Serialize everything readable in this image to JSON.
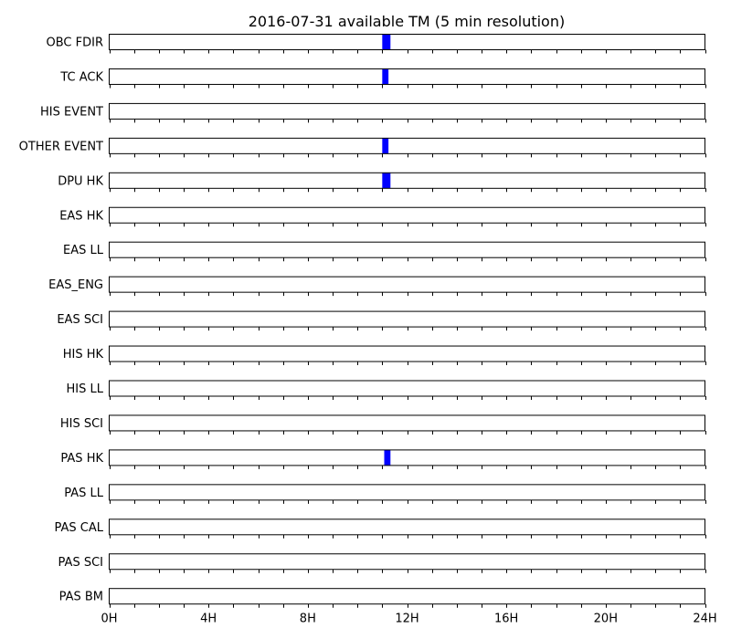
{
  "chart_data": {
    "type": "timeline",
    "title": "2016-07-31 available TM (5 min resolution)",
    "x_unit": "hours",
    "xlim": [
      0,
      24
    ],
    "x_tick_values": [
      0,
      4,
      8,
      12,
      16,
      20,
      24
    ],
    "x_tick_labels": [
      "0H",
      "4H",
      "8H",
      "12H",
      "16H",
      "20H",
      "24H"
    ],
    "minor_tick_step_hours": 1,
    "bar_color": "#0000ff",
    "rows": [
      {
        "label": "OBC FDIR",
        "intervals": [
          [
            11.0,
            11.33
          ]
        ]
      },
      {
        "label": "TC ACK",
        "intervals": [
          [
            11.0,
            11.25
          ]
        ]
      },
      {
        "label": "HIS EVENT",
        "intervals": []
      },
      {
        "label": "OTHER EVENT",
        "intervals": [
          [
            11.0,
            11.25
          ]
        ]
      },
      {
        "label": "DPU HK",
        "intervals": [
          [
            11.0,
            11.33
          ]
        ]
      },
      {
        "label": "EAS HK",
        "intervals": []
      },
      {
        "label": "EAS LL",
        "intervals": []
      },
      {
        "label": "EAS_ENG",
        "intervals": []
      },
      {
        "label": "EAS SCI",
        "intervals": []
      },
      {
        "label": "HIS HK",
        "intervals": []
      },
      {
        "label": "HIS LL",
        "intervals": []
      },
      {
        "label": "HIS SCI",
        "intervals": []
      },
      {
        "label": "PAS HK",
        "intervals": [
          [
            11.08,
            11.33
          ]
        ]
      },
      {
        "label": "PAS LL",
        "intervals": []
      },
      {
        "label": "PAS CAL",
        "intervals": []
      },
      {
        "label": "PAS SCI",
        "intervals": []
      },
      {
        "label": "PAS BM",
        "intervals": []
      }
    ]
  }
}
